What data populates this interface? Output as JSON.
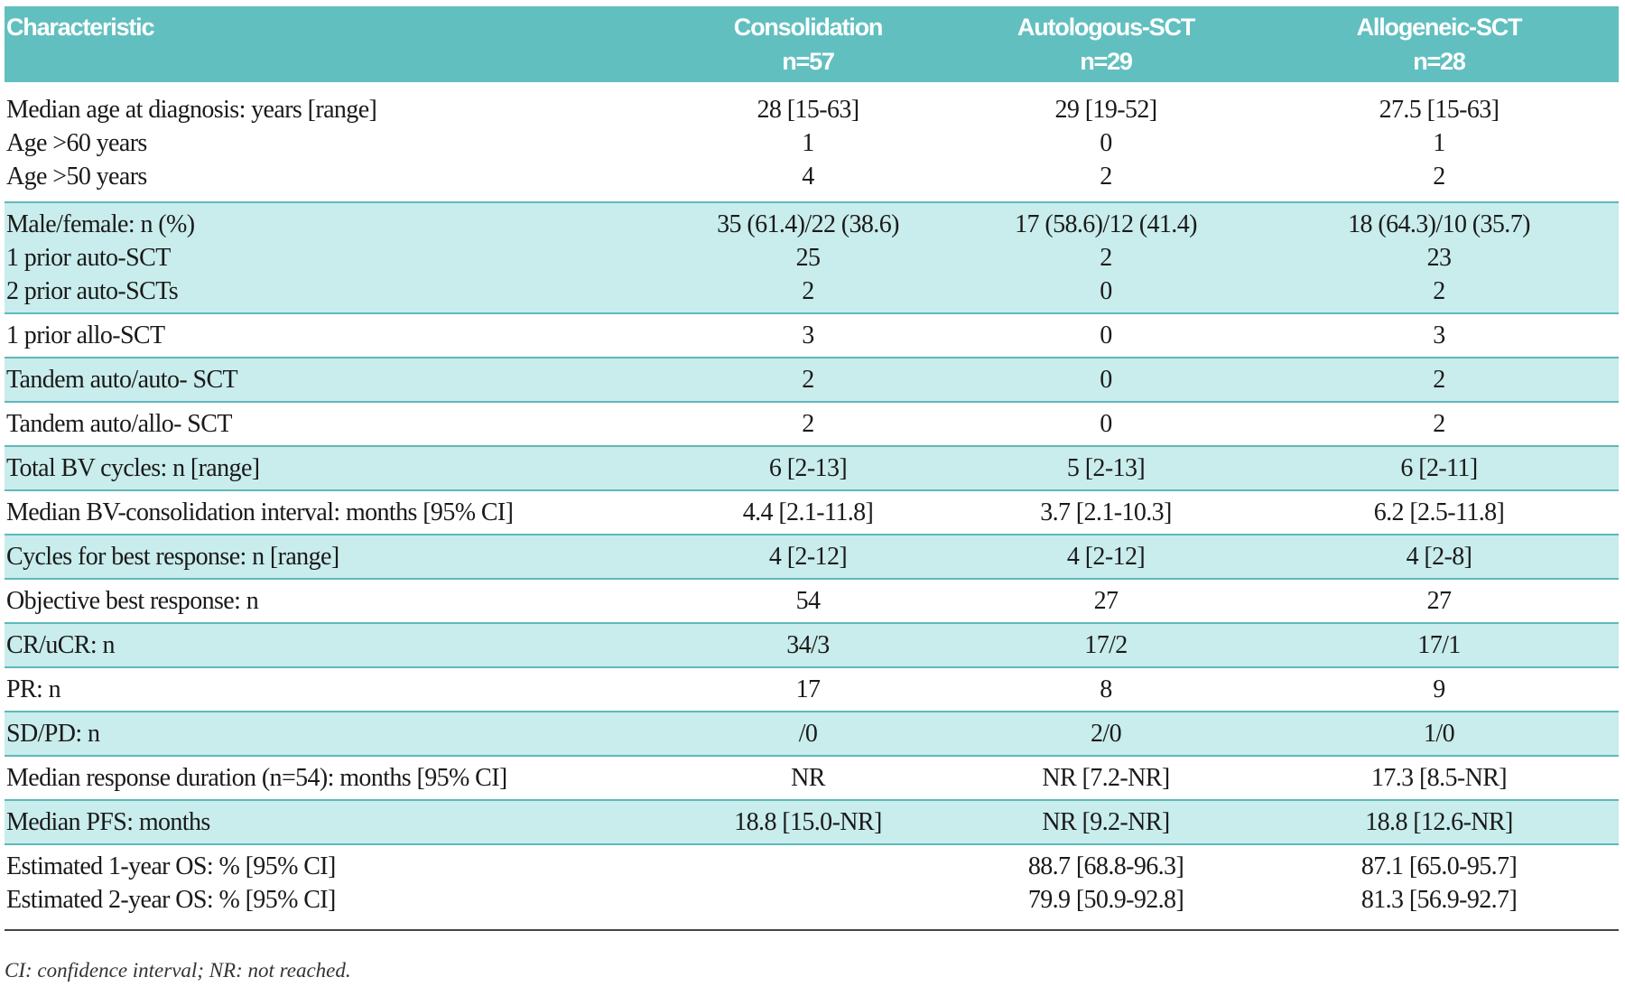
{
  "header": {
    "columns": [
      {
        "name": "Characteristic"
      },
      {
        "name": "Consolidation",
        "n": "n=57"
      },
      {
        "name": "Autologous-SCT",
        "n": "n=29"
      },
      {
        "name": "Allogeneic-SCT",
        "n": "n=28"
      }
    ]
  },
  "groups": [
    {
      "rows": [
        [
          "Median age at diagnosis: years [range]",
          "28  [15-63]",
          "29 [19-52]",
          "27.5 [15-63]"
        ],
        [
          "Age >60 years",
          "1",
          "0",
          "1"
        ],
        [
          "Age >50 years",
          "4",
          "2",
          "2"
        ]
      ]
    },
    {
      "rows": [
        [
          "Male/female: n (%)",
          "35 (61.4)/22 (38.6)",
          "17 (58.6)/12 (41.4)",
          "18 (64.3)/10 (35.7)"
        ],
        [
          "1 prior auto-SCT",
          "25",
          "2",
          "23"
        ],
        [
          "2 prior auto-SCTs",
          "2",
          "0",
          "2"
        ]
      ]
    },
    {
      "rows": [
        [
          "1 prior allo-SCT",
          "3",
          "0",
          "3"
        ]
      ]
    },
    {
      "rows": [
        [
          "Tandem auto/auto- SCT",
          "2",
          "0",
          "2"
        ]
      ]
    },
    {
      "rows": [
        [
          "Tandem auto/allo- SCT",
          "2",
          "0",
          "2"
        ]
      ]
    },
    {
      "rows": [
        [
          "Total BV cycles: n [range]",
          "6 [2-13]",
          "5 [2-13]",
          "6 [2-11]"
        ]
      ]
    },
    {
      "rows": [
        [
          "Median BV-consolidation interval: months [95% CI]",
          "4.4 [2.1-11.8]",
          "3.7 [2.1-10.3]",
          "6.2 [2.5-11.8]"
        ]
      ]
    },
    {
      "rows": [
        [
          "Cycles for best response: n [range]",
          "4 [2-12]",
          "4 [2-12]",
          "4 [2-8]"
        ]
      ]
    },
    {
      "rows": [
        [
          "Objective best response: n",
          "54",
          "27",
          "27"
        ]
      ]
    },
    {
      "rows": [
        [
          "CR/uCR: n",
          "34/3",
          "17/2",
          "17/1"
        ]
      ]
    },
    {
      "rows": [
        [
          "PR: n",
          "17",
          "8",
          "9"
        ]
      ]
    },
    {
      "rows": [
        [
          "SD/PD: n",
          "/0",
          "2/0",
          "1/0"
        ]
      ]
    },
    {
      "rows": [
        [
          "Median response duration (n=54): months [95% CI]",
          "NR",
          "NR [7.2-NR]",
          "17.3 [8.5-NR]"
        ]
      ]
    },
    {
      "rows": [
        [
          "Median PFS: months",
          "18.8 [15.0-NR]",
          "NR [9.2-NR]",
          "18.8 [12.6-NR]"
        ]
      ]
    },
    {
      "rows": [
        [
          "Estimated 1-year OS: % [95% CI]",
          null,
          "88.7 [68.8-96.3]",
          "87.1 [65.0-95.7]"
        ],
        [
          "Estimated 2-year OS: % [95% CI]",
          null,
          "79.9 [50.9-92.8]",
          "81.3 [56.9-92.7]"
        ]
      ]
    }
  ],
  "footnote": "CI: confidence interval; NR: not reached."
}
